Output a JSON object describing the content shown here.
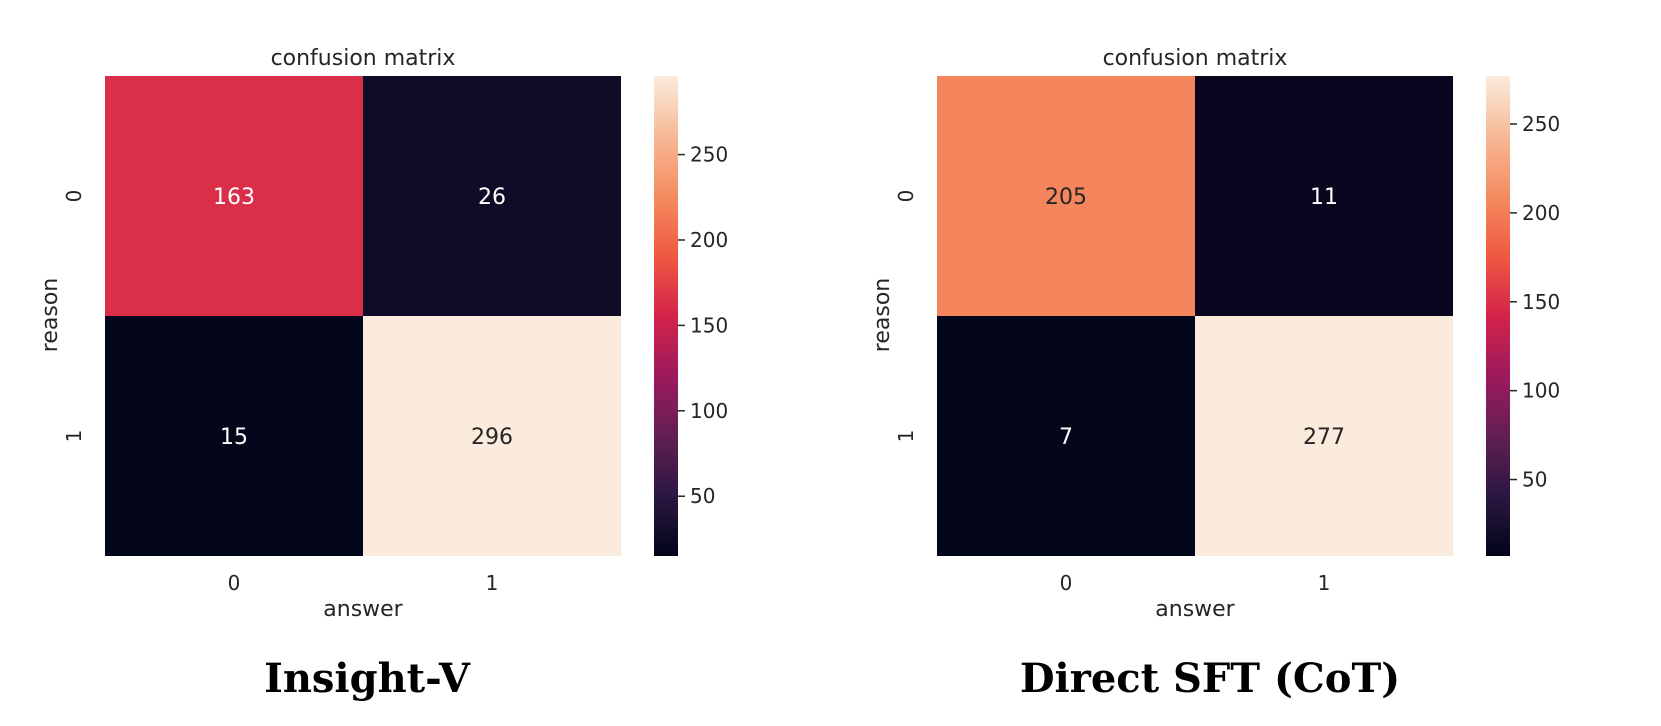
{
  "figure": {
    "captions": [
      "Insight-V",
      "Direct SFT (CoT)"
    ]
  },
  "chart_data": [
    {
      "type": "heatmap",
      "title": "confusion matrix",
      "xlabel": "answer",
      "ylabel": "reason",
      "x_categories": [
        "0",
        "1"
      ],
      "y_categories": [
        "0",
        "1"
      ],
      "values": [
        [
          163,
          26
        ],
        [
          15,
          296
        ]
      ],
      "colorbar": {
        "min": 15,
        "max": 296,
        "ticks": [
          50,
          100,
          150,
          200,
          250
        ],
        "tick_labels": [
          "50",
          "100",
          "150",
          "200",
          "250"
        ]
      },
      "colormap": "rocket",
      "grid": false,
      "legend": "colorbar-right"
    },
    {
      "type": "heatmap",
      "title": "confusion matrix",
      "xlabel": "answer",
      "ylabel": "reason",
      "x_categories": [
        "0",
        "1"
      ],
      "y_categories": [
        "0",
        "1"
      ],
      "values": [
        [
          205,
          11
        ],
        [
          7,
          277
        ]
      ],
      "colorbar": {
        "min": 7,
        "max": 277,
        "ticks": [
          50,
          100,
          150,
          200,
          250
        ],
        "tick_labels": [
          "50",
          "100",
          "150",
          "200",
          "250"
        ]
      },
      "colormap": "rocket",
      "grid": false,
      "legend": "colorbar-right"
    }
  ]
}
